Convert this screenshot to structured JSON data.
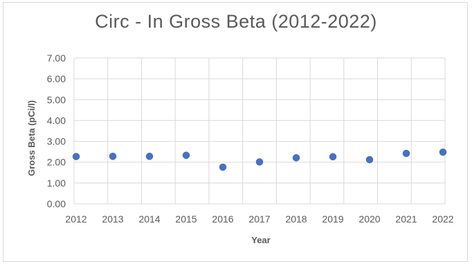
{
  "chart_data": {
    "type": "scatter",
    "title": "Circ - In Gross Beta (2012-2022)",
    "xlabel": "Year",
    "ylabel": "Gross Beta (pCi/l)",
    "x": [
      2012,
      2013,
      2014,
      2015,
      2016,
      2017,
      2018,
      2019,
      2020,
      2021,
      2022
    ],
    "series": [
      {
        "values": [
          2.27,
          2.28,
          2.28,
          2.33,
          1.76,
          2.01,
          2.21,
          2.26,
          2.12,
          2.42,
          2.48
        ],
        "color": "#4472c4"
      }
    ],
    "xlim": [
      2012,
      2022
    ],
    "ylim": [
      0,
      7
    ],
    "yticks": [
      "0.00",
      "1.00",
      "2.00",
      "3.00",
      "4.00",
      "5.00",
      "6.00",
      "7.00"
    ],
    "xticks": [
      "2012",
      "2013",
      "2014",
      "2015",
      "2016",
      "2017",
      "2018",
      "2019",
      "2020",
      "2021",
      "2022"
    ],
    "grid": true,
    "legend": "none"
  }
}
